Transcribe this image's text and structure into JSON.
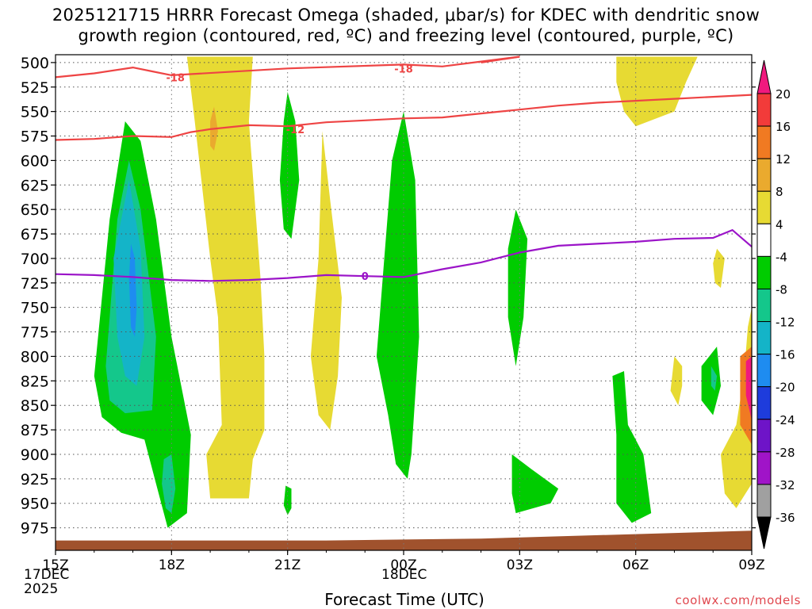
{
  "chart_data": {
    "type": "heatmap",
    "title_line1": "2025121715 HRRR Forecast Omega (shaded, μbar/s) for KDEC with dendritic snow",
    "title_line2": "growth region (contoured, red, ºC) and freezing level (contoured, purple, ºC)",
    "xlabel": "Forecast Time (UTC)",
    "credit": "coolwx.com/models",
    "x_ticks": [
      "15Z",
      "18Z",
      "21Z",
      "00Z",
      "03Z",
      "06Z",
      "09Z"
    ],
    "x_date_labels": [
      {
        "at": "15Z",
        "line1": "17DEC",
        "line2": "2025"
      },
      {
        "at": "00Z",
        "line1": "18DEC",
        "line2": ""
      }
    ],
    "x_range_hours": [
      0,
      18
    ],
    "y_ticks": [
      500,
      525,
      550,
      575,
      600,
      625,
      650,
      675,
      700,
      725,
      750,
      775,
      800,
      825,
      850,
      875,
      900,
      925,
      950,
      975
    ],
    "y_range_hpa": [
      492,
      998
    ],
    "colorbar": {
      "labels": [
        "20",
        "16",
        "12",
        "8",
        "4",
        "-4",
        "-8",
        "-12",
        "-16",
        "-20",
        "-24",
        "-28",
        "-32",
        "-36"
      ],
      "colors": [
        "#f0197e",
        "#f23b3a",
        "#f07a22",
        "#eaaa2e",
        "#e7da33",
        "#ffffff",
        "#00cc00",
        "#14c78b",
        "#14b4c8",
        "#1e8cf0",
        "#1e3cdc",
        "#6e14c8",
        "#a014c8",
        "#a0a0a0",
        "#000000"
      ]
    },
    "contour_labels": [
      {
        "text": "-18",
        "color": "#ee4444"
      },
      {
        "text": "-18",
        "color": "#ee4444"
      },
      {
        "text": "-12",
        "color": "#ee4444"
      },
      {
        "text": "0",
        "color": "#9b14c8"
      }
    ],
    "contour_lines": [
      {
        "name": "dgz-top-minus-18",
        "color": "#ee4444",
        "points": [
          [
            0,
            515
          ],
          [
            1,
            511
          ],
          [
            2,
            505
          ],
          [
            2.5,
            509
          ],
          [
            3,
            513
          ],
          [
            6,
            506
          ],
          [
            9,
            502
          ],
          [
            10,
            504
          ],
          [
            11,
            499
          ],
          [
            12,
            494
          ]
        ]
      },
      {
        "name": "dgz-top-minus-18b",
        "color": "#ee4444",
        "points": [
          [
            11,
            500
          ],
          [
            12,
            494
          ]
        ]
      },
      {
        "name": "dgz-bottom-minus-12",
        "color": "#ee4444",
        "points": [
          [
            0,
            579
          ],
          [
            1,
            578
          ],
          [
            2,
            575
          ],
          [
            3,
            576
          ],
          [
            3.5,
            571
          ],
          [
            4,
            568
          ],
          [
            5,
            564
          ],
          [
            6,
            565
          ],
          [
            7,
            561
          ],
          [
            8,
            559
          ],
          [
            9,
            557
          ],
          [
            10,
            556
          ],
          [
            11,
            552
          ],
          [
            12,
            548
          ],
          [
            13,
            544
          ],
          [
            14,
            541
          ],
          [
            15,
            539
          ],
          [
            16,
            537
          ],
          [
            17,
            535
          ],
          [
            18,
            533
          ]
        ]
      },
      {
        "name": "freezing-level-0",
        "color": "#9b14c8",
        "points": [
          [
            0,
            716
          ],
          [
            1,
            717
          ],
          [
            2,
            719
          ],
          [
            3,
            722
          ],
          [
            4,
            723
          ],
          [
            5,
            722
          ],
          [
            6,
            720
          ],
          [
            7,
            717
          ],
          [
            8,
            718
          ],
          [
            9,
            719
          ],
          [
            10,
            711
          ],
          [
            11,
            704
          ],
          [
            12,
            694
          ],
          [
            13,
            687
          ],
          [
            14,
            685
          ],
          [
            15,
            683
          ],
          [
            16,
            680
          ],
          [
            17,
            679
          ],
          [
            17.5,
            671
          ],
          [
            18,
            688
          ]
        ]
      }
    ],
    "shaded_regions": [
      {
        "name": "green-18z-column",
        "value": -8,
        "points": [
          [
            1.0,
            820
          ],
          [
            1.4,
            660
          ],
          [
            1.8,
            560
          ],
          [
            2.2,
            580
          ],
          [
            2.6,
            660
          ],
          [
            3.0,
            780
          ],
          [
            3.5,
            880
          ],
          [
            3.4,
            960
          ],
          [
            2.9,
            975
          ],
          [
            2.6,
            930
          ],
          [
            2.3,
            885
          ],
          [
            1.7,
            878
          ],
          [
            1.2,
            862
          ]
        ]
      },
      {
        "name": "teal-18z-core",
        "value": -12,
        "points": [
          [
            1.3,
            810
          ],
          [
            1.6,
            660
          ],
          [
            1.9,
            600
          ],
          [
            2.2,
            650
          ],
          [
            2.6,
            780
          ],
          [
            2.5,
            855
          ],
          [
            1.8,
            858
          ],
          [
            1.4,
            845
          ]
        ]
      },
      {
        "name": "cyan-18z-core",
        "value": -16,
        "points": [
          [
            1.5,
            700
          ],
          [
            1.9,
            620
          ],
          [
            2.2,
            690
          ],
          [
            2.3,
            780
          ],
          [
            2.1,
            830
          ],
          [
            1.8,
            820
          ],
          [
            1.6,
            780
          ]
        ]
      },
      {
        "name": "blue-18z-core",
        "value": -20,
        "points": [
          [
            1.95,
            685
          ],
          [
            2.05,
            700
          ],
          [
            2.1,
            750
          ],
          [
            2.05,
            780
          ],
          [
            1.95,
            770
          ],
          [
            1.9,
            720
          ]
        ]
      },
      {
        "name": "teal-925-blob",
        "value": -12,
        "points": [
          [
            2.8,
            905
          ],
          [
            3.0,
            900
          ],
          [
            3.1,
            935
          ],
          [
            3.0,
            960
          ],
          [
            2.85,
            955
          ],
          [
            2.75,
            930
          ]
        ]
      },
      {
        "name": "yellow-19z-column",
        "value": 4,
        "points": [
          [
            3.4,
            494
          ],
          [
            5.1,
            494
          ],
          [
            5.0,
            560
          ],
          [
            5.3,
            720
          ],
          [
            5.4,
            800
          ],
          [
            5.4,
            875
          ],
          [
            5.1,
            905
          ],
          [
            5.0,
            945
          ],
          [
            4.0,
            945
          ],
          [
            3.9,
            900
          ],
          [
            4.3,
            870
          ],
          [
            4.2,
            760
          ],
          [
            4.0,
            700
          ],
          [
            3.6,
            560
          ]
        ]
      },
      {
        "name": "orange-19z-blob",
        "value": 8,
        "points": [
          [
            4.0,
            560
          ],
          [
            4.1,
            545
          ],
          [
            4.2,
            570
          ],
          [
            4.1,
            590
          ],
          [
            4.0,
            585
          ]
        ]
      },
      {
        "name": "green-21z-column",
        "value": -8,
        "points": [
          [
            6.0,
            530
          ],
          [
            6.2,
            560
          ],
          [
            6.3,
            620
          ],
          [
            6.1,
            680
          ],
          [
            5.9,
            670
          ],
          [
            5.8,
            620
          ],
          [
            5.9,
            560
          ]
        ]
      },
      {
        "name": "green-21z-lower",
        "value": -8,
        "points": [
          [
            5.95,
            932
          ],
          [
            6.1,
            935
          ],
          [
            6.1,
            955
          ],
          [
            6.0,
            962
          ],
          [
            5.9,
            952
          ]
        ]
      },
      {
        "name": "yellow-22z-column",
        "value": 4,
        "points": [
          [
            6.9,
            570
          ],
          [
            7.1,
            640
          ],
          [
            7.4,
            740
          ],
          [
            7.3,
            820
          ],
          [
            7.1,
            875
          ],
          [
            6.8,
            860
          ],
          [
            6.6,
            800
          ],
          [
            6.8,
            700
          ]
        ]
      },
      {
        "name": "green-00z-column",
        "value": -8,
        "points": [
          [
            8.7,
            600
          ],
          [
            9.0,
            550
          ],
          [
            9.3,
            620
          ],
          [
            9.4,
            780
          ],
          [
            9.2,
            900
          ],
          [
            9.1,
            925
          ],
          [
            8.8,
            910
          ],
          [
            8.6,
            860
          ],
          [
            8.3,
            800
          ],
          [
            8.5,
            700
          ]
        ]
      },
      {
        "name": "green-03z-column",
        "value": -8,
        "points": [
          [
            11.9,
            650
          ],
          [
            12.2,
            680
          ],
          [
            12.1,
            760
          ],
          [
            11.9,
            810
          ],
          [
            11.7,
            760
          ],
          [
            11.7,
            690
          ]
        ]
      },
      {
        "name": "green-03z-lower",
        "value": -8,
        "points": [
          [
            11.8,
            900
          ],
          [
            12.3,
            915
          ],
          [
            13.0,
            935
          ],
          [
            12.8,
            950
          ],
          [
            11.9,
            960
          ],
          [
            11.8,
            940
          ]
        ]
      },
      {
        "name": "yellow-06z-top",
        "value": 4,
        "points": [
          [
            14.5,
            494
          ],
          [
            16.6,
            494
          ],
          [
            16.3,
            520
          ],
          [
            16.0,
            550
          ],
          [
            15.0,
            565
          ],
          [
            14.7,
            550
          ],
          [
            14.5,
            520
          ]
        ]
      },
      {
        "name": "green-06z-column",
        "value": -8,
        "points": [
          [
            14.4,
            820
          ],
          [
            14.7,
            815
          ],
          [
            14.8,
            870
          ],
          [
            15.2,
            900
          ],
          [
            15.4,
            960
          ],
          [
            14.9,
            970
          ],
          [
            14.5,
            950
          ],
          [
            14.5,
            880
          ]
        ]
      },
      {
        "name": "yellow-07z-blob",
        "value": 4,
        "points": [
          [
            16.0,
            800
          ],
          [
            16.2,
            810
          ],
          [
            16.2,
            830
          ],
          [
            16.1,
            850
          ],
          [
            15.9,
            835
          ]
        ]
      },
      {
        "name": "yellow-08z-blob",
        "value": 4,
        "points": [
          [
            17.1,
            690
          ],
          [
            17.3,
            700
          ],
          [
            17.2,
            730
          ],
          [
            17.05,
            725
          ],
          [
            17.0,
            705
          ]
        ]
      },
      {
        "name": "green-08z-blob",
        "value": -8,
        "points": [
          [
            16.7,
            810
          ],
          [
            17.1,
            790
          ],
          [
            17.2,
            830
          ],
          [
            17.0,
            860
          ],
          [
            16.7,
            845
          ]
        ]
      },
      {
        "name": "cyan-08z-blob",
        "value": -12,
        "points": [
          [
            16.95,
            810
          ],
          [
            17.1,
            820
          ],
          [
            17.05,
            835
          ],
          [
            16.95,
            830
          ]
        ]
      },
      {
        "name": "yellow-09z-right",
        "value": 4,
        "points": [
          [
            17.9,
            770
          ],
          [
            18.0,
            750
          ],
          [
            18.0,
            930
          ],
          [
            17.6,
            955
          ],
          [
            17.3,
            940
          ],
          [
            17.2,
            900
          ],
          [
            17.6,
            870
          ],
          [
            17.8,
            820
          ]
        ]
      },
      {
        "name": "orange-09z-right",
        "value": 12,
        "points": [
          [
            17.7,
            800
          ],
          [
            18.0,
            790
          ],
          [
            18.0,
            890
          ],
          [
            17.7,
            870
          ]
        ]
      },
      {
        "name": "red-09z-right",
        "value": 20,
        "points": [
          [
            17.85,
            805
          ],
          [
            18.0,
            800
          ],
          [
            18.0,
            865
          ],
          [
            17.85,
            840
          ]
        ]
      }
    ],
    "ground": [
      [
        0,
        988
      ],
      [
        7,
        988
      ],
      [
        11,
        986
      ],
      [
        18,
        978
      ]
    ]
  }
}
